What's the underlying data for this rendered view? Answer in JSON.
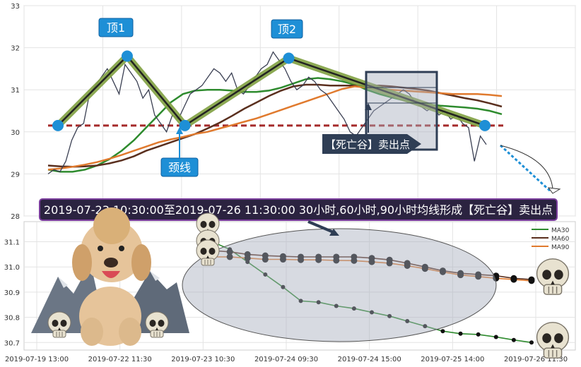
{
  "chart_data": [
    {
      "type": "line",
      "panel": "price",
      "ylim": [
        28,
        33
      ],
      "y_ticks": [
        "28",
        "29",
        "30",
        "31",
        "32",
        "33"
      ],
      "neckline_value": 30.15,
      "pattern_points": [
        {
          "i": 0,
          "y": 30.15
        },
        {
          "i": 6,
          "y": 31.8
        },
        {
          "i": 11,
          "y": 30.15
        },
        {
          "i": 20,
          "y": 31.75
        },
        {
          "i": 37,
          "y": 30.15
        }
      ],
      "series": [
        {
          "key": "close",
          "color": "#3a3f52",
          "values": [
            29.0,
            29.1,
            29.05,
            29.3,
            29.8,
            30.1,
            30.2,
            30.9,
            31.1,
            31.3,
            31.5,
            31.2,
            30.9,
            31.6,
            31.4,
            31.2,
            30.8,
            31.0,
            30.4,
            30.2,
            30.0,
            30.4,
            30.3,
            30.6,
            30.9,
            31.0,
            31.1,
            31.3,
            31.5,
            31.4,
            31.2,
            31.4,
            31.0,
            30.9,
            31.1,
            31.3,
            31.5,
            31.6,
            31.9,
            31.7,
            31.5,
            31.2,
            31.0,
            31.1,
            31.3,
            31.2,
            31.0,
            30.9,
            30.7,
            30.5,
            30.3,
            30.0,
            29.9,
            30.1,
            30.3,
            30.5,
            30.6,
            30.7,
            30.8,
            30.9,
            31.0,
            30.9,
            30.7,
            30.6,
            30.5,
            30.6,
            30.4,
            30.5,
            30.3,
            30.4,
            30.2,
            30.1,
            29.3,
            29.9,
            29.7
          ]
        },
        {
          "key": "MA30",
          "color": "#2e8b2e",
          "values": [
            29.1,
            29.05,
            29.05,
            29.1,
            29.2,
            29.35,
            29.55,
            29.8,
            30.1,
            30.4,
            30.7,
            30.9,
            30.98,
            31.0,
            31.0,
            30.98,
            30.95,
            30.95,
            30.98,
            31.05,
            31.15,
            31.25,
            31.28,
            31.25,
            31.2,
            31.12,
            31.0,
            30.9,
            30.82,
            30.75,
            30.7,
            30.65,
            30.62,
            30.6,
            30.58,
            30.55,
            30.5,
            30.42
          ]
        },
        {
          "key": "MA60",
          "color": "#5a2f1e",
          "values": [
            29.2,
            29.18,
            29.17,
            29.18,
            29.2,
            29.25,
            29.32,
            29.42,
            29.55,
            29.65,
            29.75,
            29.85,
            29.95,
            30.08,
            30.22,
            30.38,
            30.55,
            30.7,
            30.85,
            30.98,
            31.08,
            31.12,
            31.12,
            31.1,
            31.1,
            31.1,
            31.1,
            31.1,
            31.08,
            31.05,
            31.02,
            30.98,
            30.92,
            30.86,
            30.8,
            30.75,
            30.68,
            30.6
          ]
        },
        {
          "key": "MA90",
          "color": "#e07a2e",
          "values": [
            29.1,
            29.13,
            29.17,
            29.22,
            29.28,
            29.36,
            29.45,
            29.55,
            29.65,
            29.75,
            29.82,
            29.88,
            29.95,
            30.0,
            30.08,
            30.16,
            30.24,
            30.32,
            30.42,
            30.52,
            30.62,
            30.72,
            30.82,
            30.92,
            31.02,
            31.08,
            31.05,
            31.02,
            31.0,
            30.98,
            30.96,
            30.94,
            30.92,
            30.9,
            30.9,
            30.9,
            30.88,
            30.85
          ]
        }
      ]
    },
    {
      "type": "line",
      "panel": "ma_zoom",
      "ylim": [
        30.67,
        31.18
      ],
      "y_ticks": [
        "30.7",
        "30.8",
        "30.9",
        "31.0",
        "31.1"
      ],
      "x_tick_labels": [
        "2019-07-19 13:00",
        "2019-07-22 11:30",
        "2019-07-23 10:30",
        "2019-07-24 09:30",
        "2019-07-24 15:00",
        "2019-07-25 14:00",
        "2019-07-26 11:30"
      ],
      "legend_position": "top-right",
      "series": [
        {
          "name": "MA30",
          "color": "#2e8b2e",
          "values": [
            31.1,
            31.07,
            31.02,
            30.97,
            30.92,
            30.865,
            30.86,
            30.845,
            30.835,
            30.82,
            30.805,
            30.785,
            30.765,
            30.745,
            30.735,
            30.732,
            30.722,
            30.71,
            30.7
          ]
        },
        {
          "name": "MA60",
          "color": "#5a2f1e",
          "values": [
            31.065,
            31.06,
            31.05,
            31.045,
            31.042,
            31.04,
            31.04,
            31.04,
            31.04,
            31.035,
            31.028,
            31.015,
            31.0,
            30.985,
            30.975,
            30.97,
            30.965,
            30.955,
            30.95
          ]
        },
        {
          "name": "MA90",
          "color": "#e07a2e",
          "values": [
            31.04,
            31.04,
            31.035,
            31.03,
            31.03,
            31.028,
            31.028,
            31.026,
            31.025,
            31.02,
            31.015,
            31.005,
            30.993,
            30.98,
            30.968,
            30.962,
            30.955,
            30.95,
            30.945
          ]
        }
      ]
    }
  ],
  "annotations": {
    "top1": "顶1",
    "top2": "顶2",
    "neckline": "颈线",
    "death_valley_box": "【死亡谷】卖出点",
    "banner": "2019-07-23 10:30:00至2019-07-26 11:30:00 30小时,60小时,90小时均线形成【死亡谷】卖出点"
  },
  "colors": {
    "banner_bg": "#2b2340",
    "banner_border": "#7a3d9c",
    "label_bg": "#1e8fd6",
    "arrow_box": "#2f3e55",
    "neckline": "#a52a2a",
    "pattern_fill": "#7fa040"
  },
  "icons": [
    "skull-icon",
    "poodle-dog-icon",
    "grey-mountain-icon"
  ]
}
